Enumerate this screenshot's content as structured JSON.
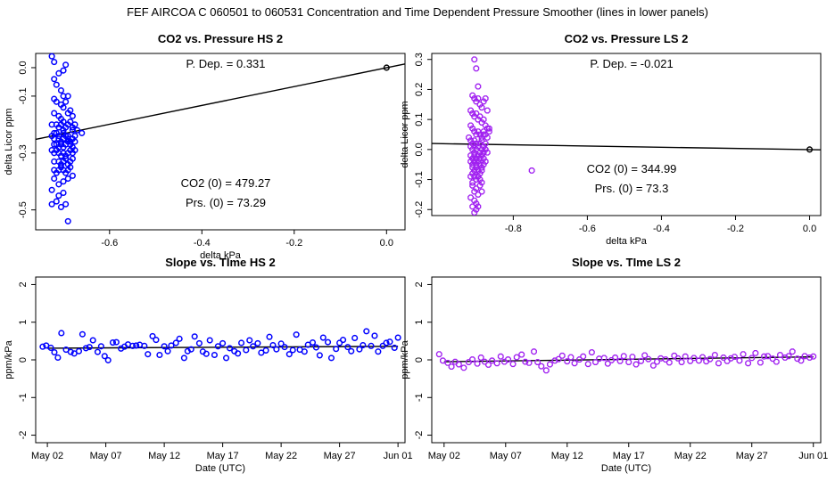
{
  "title": "FEF   AIRCOA C   060501 to 060531   Concentration and Time Dependent Pressure Smoother (lines in lower panels)",
  "colors": {
    "hs": "#0000ff",
    "ls": "#a020f0",
    "line": "#000000"
  },
  "chart_data": [
    {
      "id": "hs-scatter",
      "type": "scatter",
      "title": "CO2 vs. Pressure HS 2",
      "xlabel": "delta kPa",
      "ylabel": "delta Licor ppm",
      "xlim": [
        -0.76,
        0.04
      ],
      "ylim": [
        -0.57,
        0.05
      ],
      "xticks": [
        -0.6,
        -0.4,
        -0.2,
        0.0
      ],
      "xticklabels": [
        "-0.6",
        "-0.4",
        "-0.2",
        "0.0"
      ],
      "yticks": [
        0.0,
        -0.1,
        -0.3,
        -0.5
      ],
      "yticklabels": [
        "0.0",
        "-0.1",
        "-0.3",
        "-0.5"
      ],
      "annotations": {
        "pdep": "P. Dep. =  0.331",
        "co2zero": "CO2 (0) =  479.27",
        "prszero": "Prs. (0) = 73.29"
      },
      "fit_line": {
        "x": [
          -0.76,
          0.04
        ],
        "y": [
          -0.252,
          0.013
        ]
      },
      "origin_point": {
        "x": 0.0,
        "y": 0.0
      },
      "series": [
        {
          "name": "HS 2",
          "x": [
            -0.725,
            -0.72,
            -0.695,
            -0.7,
            -0.71,
            -0.72,
            -0.715,
            -0.705,
            -0.7,
            -0.69,
            -0.72,
            -0.715,
            -0.705,
            -0.7,
            -0.695,
            -0.685,
            -0.72,
            -0.71,
            -0.705,
            -0.7,
            -0.69,
            -0.68,
            -0.725,
            -0.715,
            -0.71,
            -0.705,
            -0.7,
            -0.695,
            -0.69,
            -0.685,
            -0.68,
            -0.675,
            -0.72,
            -0.715,
            -0.71,
            -0.7,
            -0.69,
            -0.68,
            -0.67,
            -0.725,
            -0.72,
            -0.71,
            -0.705,
            -0.7,
            -0.695,
            -0.69,
            -0.685,
            -0.68,
            -0.675,
            -0.66,
            -0.72,
            -0.715,
            -0.71,
            -0.705,
            -0.7,
            -0.695,
            -0.69,
            -0.685,
            -0.68,
            -0.675,
            -0.725,
            -0.72,
            -0.715,
            -0.71,
            -0.705,
            -0.7,
            -0.695,
            -0.69,
            -0.685,
            -0.68,
            -0.675,
            -0.72,
            -0.71,
            -0.705,
            -0.7,
            -0.695,
            -0.69,
            -0.685,
            -0.68,
            -0.72,
            -0.715,
            -0.71,
            -0.705,
            -0.7,
            -0.695,
            -0.69,
            -0.685,
            -0.72,
            -0.71,
            -0.7,
            -0.69,
            -0.68,
            -0.725,
            -0.71,
            -0.7,
            -0.715,
            -0.705,
            -0.695,
            -0.725,
            -0.69
          ],
          "y": [
            0.04,
            0.02,
            0.01,
            -0.01,
            -0.02,
            -0.04,
            -0.06,
            -0.08,
            -0.1,
            -0.1,
            -0.11,
            -0.12,
            -0.13,
            -0.14,
            -0.12,
            -0.15,
            -0.16,
            -0.17,
            -0.18,
            -0.19,
            -0.16,
            -0.17,
            -0.2,
            -0.2,
            -0.21,
            -0.2,
            -0.22,
            -0.21,
            -0.2,
            -0.19,
            -0.21,
            -0.2,
            -0.23,
            -0.23,
            -0.24,
            -0.23,
            -0.24,
            -0.22,
            -0.22,
            -0.24,
            -0.25,
            -0.25,
            -0.26,
            -0.25,
            -0.24,
            -0.25,
            -0.26,
            -0.25,
            -0.24,
            -0.23,
            -0.27,
            -0.27,
            -0.28,
            -0.27,
            -0.28,
            -0.27,
            -0.26,
            -0.27,
            -0.28,
            -0.26,
            -0.29,
            -0.3,
            -0.29,
            -0.3,
            -0.31,
            -0.3,
            -0.31,
            -0.3,
            -0.29,
            -0.3,
            -0.29,
            -0.33,
            -0.33,
            -0.34,
            -0.33,
            -0.32,
            -0.34,
            -0.33,
            -0.32,
            -0.36,
            -0.37,
            -0.36,
            -0.35,
            -0.36,
            -0.37,
            -0.36,
            -0.35,
            -0.39,
            -0.41,
            -0.4,
            -0.39,
            -0.38,
            -0.43,
            -0.45,
            -0.44,
            -0.47,
            -0.49,
            -0.48,
            -0.48,
            -0.54
          ]
        }
      ]
    },
    {
      "id": "ls-scatter",
      "type": "scatter",
      "title": "CO2 vs. Pressure LS 2",
      "xlabel": "delta kPa",
      "ylabel": "delta Licor ppm",
      "xlim": [
        -1.02,
        0.03
      ],
      "ylim": [
        -0.22,
        0.32
      ],
      "xticks": [
        -0.8,
        -0.6,
        -0.4,
        -0.2,
        0.0
      ],
      "xticklabels": [
        "-0.8",
        "-0.6",
        "-0.4",
        "-0.2",
        "0.0"
      ],
      "yticks": [
        0.3,
        0.2,
        0.1,
        0.0,
        -0.1,
        -0.2
      ],
      "yticklabels": [
        "0.3",
        "0.2",
        "0.1",
        "0.0",
        "-0.1",
        "-0.2"
      ],
      "annotations": {
        "pdep": "P. Dep. =  -0.021",
        "co2zero": "CO2 (0) =  344.99",
        "prszero": "Prs. (0) = 73.3"
      },
      "fit_line": {
        "x": [
          -1.02,
          0.03
        ],
        "y": [
          0.02,
          -0.001
        ]
      },
      "origin_point": {
        "x": 0.0,
        "y": 0.0
      },
      "series": [
        {
          "name": "LS 2",
          "x": [
            -0.905,
            -0.9,
            -0.895,
            -0.91,
            -0.905,
            -0.9,
            -0.895,
            -0.89,
            -0.885,
            -0.88,
            -0.875,
            -0.87,
            -0.915,
            -0.91,
            -0.905,
            -0.9,
            -0.895,
            -0.89,
            -0.885,
            -0.88,
            -0.875,
            -0.87,
            -0.865,
            -0.915,
            -0.91,
            -0.905,
            -0.9,
            -0.895,
            -0.89,
            -0.885,
            -0.88,
            -0.875,
            -0.87,
            -0.92,
            -0.915,
            -0.91,
            -0.905,
            -0.9,
            -0.895,
            -0.89,
            -0.885,
            -0.88,
            -0.875,
            -0.915,
            -0.91,
            -0.905,
            -0.9,
            -0.895,
            -0.89,
            -0.885,
            -0.88,
            -0.875,
            -0.87,
            -0.915,
            -0.91,
            -0.905,
            -0.9,
            -0.895,
            -0.89,
            -0.885,
            -0.88,
            -0.915,
            -0.91,
            -0.905,
            -0.9,
            -0.895,
            -0.89,
            -0.885,
            -0.88,
            -0.875,
            -0.91,
            -0.905,
            -0.9,
            -0.895,
            -0.89,
            -0.885,
            -0.915,
            -0.91,
            -0.905,
            -0.9,
            -0.895,
            -0.89,
            -0.885,
            -0.91,
            -0.9,
            -0.89,
            -0.905,
            -0.895,
            -0.885,
            -0.915,
            -0.905,
            -0.9,
            -0.91,
            -0.9,
            -0.905,
            -0.895,
            -0.91,
            -0.75,
            -0.88,
            -0.865
          ],
          "y": [
            0.3,
            0.27,
            0.21,
            0.18,
            0.17,
            0.16,
            0.17,
            0.15,
            0.14,
            0.16,
            0.17,
            0.13,
            0.13,
            0.12,
            0.11,
            0.12,
            0.1,
            0.11,
            0.09,
            0.1,
            0.08,
            0.07,
            0.06,
            0.08,
            0.07,
            0.06,
            0.05,
            0.06,
            0.05,
            0.04,
            0.06,
            0.05,
            0.04,
            0.04,
            0.03,
            0.02,
            0.03,
            0.02,
            0.01,
            0.02,
            0.03,
            0.01,
            0.02,
            0.01,
            0.0,
            -0.01,
            0.0,
            0.01,
            -0.01,
            0.0,
            -0.01,
            0.0,
            -0.01,
            -0.02,
            -0.03,
            -0.02,
            -0.03,
            -0.02,
            -0.03,
            -0.02,
            -0.03,
            -0.04,
            -0.05,
            -0.04,
            -0.05,
            -0.04,
            -0.05,
            -0.06,
            -0.05,
            -0.04,
            -0.06,
            -0.07,
            -0.06,
            -0.07,
            -0.08,
            -0.07,
            -0.09,
            -0.08,
            -0.09,
            -0.1,
            -0.09,
            -0.1,
            -0.11,
            -0.12,
            -0.13,
            -0.12,
            -0.14,
            -0.15,
            -0.14,
            -0.16,
            -0.17,
            -0.18,
            -0.19,
            -0.2,
            -0.21,
            -0.19,
            -0.11,
            -0.07,
            0.05,
            0.07
          ]
        }
      ]
    },
    {
      "id": "hs-slope",
      "type": "scatter",
      "title": "Slope vs. TIme HS 2",
      "xlabel": "Date (UTC)",
      "ylabel": "ppm/kPa",
      "xlim": [
        0.0,
        31.6
      ],
      "ylim": [
        -2.2,
        2.2
      ],
      "xticks": [
        1,
        6,
        11,
        16,
        21,
        26,
        31
      ],
      "xticklabels": [
        "May 02",
        "May 07",
        "May 12",
        "May 17",
        "May 22",
        "May 27",
        "Jun 01"
      ],
      "yticks": [
        2,
        1,
        0,
        -1,
        -2
      ],
      "yticklabels": [
        "2",
        "1",
        "0",
        "-1",
        "-2"
      ],
      "fit_line": {
        "x": [
          1.0,
          31.0
        ],
        "y": [
          0.31,
          0.36
        ]
      },
      "series": [
        {
          "name": "HS 2",
          "x": [
            0.6,
            0.9,
            1.3,
            1.6,
            1.9,
            2.2,
            2.6,
            3.0,
            3.3,
            3.7,
            4.0,
            4.3,
            4.6,
            4.9,
            5.3,
            5.6,
            5.9,
            6.2,
            6.6,
            6.9,
            7.3,
            7.6,
            7.9,
            8.3,
            8.6,
            8.9,
            9.3,
            9.6,
            10.0,
            10.3,
            10.6,
            11.0,
            11.3,
            11.6,
            12.0,
            12.3,
            12.7,
            13.0,
            13.3,
            13.6,
            14.0,
            14.3,
            14.6,
            14.9,
            15.3,
            15.6,
            16.0,
            16.3,
            16.6,
            17.0,
            17.3,
            17.6,
            18.0,
            18.3,
            18.6,
            19.0,
            19.3,
            19.7,
            20.0,
            20.3,
            20.6,
            21.0,
            21.3,
            21.7,
            22.0,
            22.3,
            22.6,
            23.0,
            23.3,
            23.7,
            24.0,
            24.3,
            24.6,
            25.0,
            25.3,
            25.7,
            26.0,
            26.3,
            26.7,
            27.0,
            27.3,
            27.7,
            28.0,
            28.3,
            28.7,
            29.0,
            29.3,
            29.7,
            30.0,
            30.3,
            30.7,
            31.0
          ],
          "y": [
            0.35,
            0.38,
            0.32,
            0.2,
            0.06,
            0.71,
            0.27,
            0.21,
            0.17,
            0.23,
            0.68,
            0.31,
            0.34,
            0.52,
            0.21,
            0.36,
            0.1,
            -0.01,
            0.46,
            0.47,
            0.3,
            0.35,
            0.41,
            0.37,
            0.38,
            0.4,
            0.37,
            0.15,
            0.63,
            0.53,
            0.13,
            0.36,
            0.23,
            0.38,
            0.45,
            0.56,
            0.05,
            0.23,
            0.28,
            0.62,
            0.44,
            0.22,
            0.16,
            0.52,
            0.13,
            0.36,
            0.44,
            0.05,
            0.31,
            0.23,
            0.17,
            0.45,
            0.26,
            0.52,
            0.36,
            0.44,
            0.19,
            0.25,
            0.61,
            0.39,
            0.28,
            0.43,
            0.34,
            0.15,
            0.26,
            0.67,
            0.27,
            0.22,
            0.4,
            0.46,
            0.33,
            0.12,
            0.59,
            0.47,
            0.05,
            0.29,
            0.45,
            0.53,
            0.34,
            0.23,
            0.58,
            0.28,
            0.39,
            0.76,
            0.37,
            0.64,
            0.22,
            0.37,
            0.45,
            0.48,
            0.32,
            0.59
          ]
        }
      ]
    },
    {
      "id": "ls-slope",
      "type": "scatter",
      "title": "Slope vs. TIme LS 2",
      "xlabel": "Date (UTC)",
      "ylabel": "ppm/kPa",
      "xlim": [
        0.0,
        31.6
      ],
      "ylim": [
        -2.2,
        2.2
      ],
      "xticks": [
        1,
        6,
        11,
        16,
        21,
        26,
        31
      ],
      "xticklabels": [
        "May 02",
        "May 07",
        "May 12",
        "May 17",
        "May 22",
        "May 27",
        "Jun 01"
      ],
      "yticks": [
        2,
        1,
        0,
        -1,
        -2
      ],
      "yticklabels": [
        "2",
        "1",
        "0",
        "-1",
        "-2"
      ],
      "fit_line": {
        "x": [
          1.0,
          31.0
        ],
        "y": [
          -0.05,
          0.08
        ]
      },
      "series": [
        {
          "name": "LS 2",
          "x": [
            0.6,
            0.9,
            1.3,
            1.6,
            1.9,
            2.2,
            2.6,
            3.0,
            3.3,
            3.7,
            4.0,
            4.3,
            4.6,
            4.9,
            5.3,
            5.6,
            5.9,
            6.2,
            6.6,
            6.9,
            7.3,
            7.6,
            7.9,
            8.3,
            8.6,
            8.9,
            9.3,
            9.6,
            10.0,
            10.3,
            10.6,
            11.0,
            11.3,
            11.6,
            12.0,
            12.3,
            12.7,
            13.0,
            13.3,
            13.6,
            14.0,
            14.3,
            14.6,
            14.9,
            15.3,
            15.6,
            16.0,
            16.3,
            16.6,
            17.0,
            17.3,
            17.6,
            18.0,
            18.3,
            18.6,
            19.0,
            19.3,
            19.7,
            20.0,
            20.3,
            20.6,
            21.0,
            21.3,
            21.7,
            22.0,
            22.3,
            22.6,
            23.0,
            23.3,
            23.7,
            24.0,
            24.3,
            24.6,
            25.0,
            25.3,
            25.7,
            26.0,
            26.3,
            26.7,
            27.0,
            27.3,
            27.7,
            28.0,
            28.3,
            28.7,
            29.0,
            29.3,
            29.7,
            30.0,
            30.3,
            30.7,
            31.0
          ],
          "y": [
            0.15,
            -0.02,
            -0.08,
            -0.18,
            -0.05,
            -0.12,
            -0.21,
            -0.06,
            0.01,
            -0.1,
            0.06,
            -0.05,
            -0.13,
            -0.02,
            -0.09,
            0.09,
            -0.05,
            0.01,
            -0.11,
            0.07,
            0.14,
            -0.05,
            -0.08,
            0.22,
            -0.06,
            -0.17,
            -0.28,
            -0.12,
            -0.02,
            0.02,
            0.11,
            -0.04,
            0.07,
            -0.09,
            0.01,
            0.09,
            -0.11,
            0.2,
            -0.06,
            0.03,
            0.05,
            -0.1,
            -0.01,
            0.06,
            -0.03,
            0.1,
            -0.06,
            0.08,
            -0.12,
            -0.03,
            0.12,
            0.02,
            -0.15,
            -0.05,
            0.04,
            0.01,
            -0.07,
            0.11,
            0.04,
            -0.06,
            0.09,
            -0.03,
            0.05,
            -0.02,
            0.07,
            -0.04,
            0.02,
            0.13,
            -0.09,
            0.06,
            -0.03,
            0.04,
            0.08,
            -0.02,
            0.15,
            -0.09,
            0.05,
            0.18,
            -0.07,
            0.09,
            0.1,
            0.03,
            -0.05,
            0.13,
            0.06,
            0.1,
            0.22,
            0.03,
            -0.02,
            0.1,
            0.06,
            0.09
          ]
        }
      ]
    }
  ]
}
